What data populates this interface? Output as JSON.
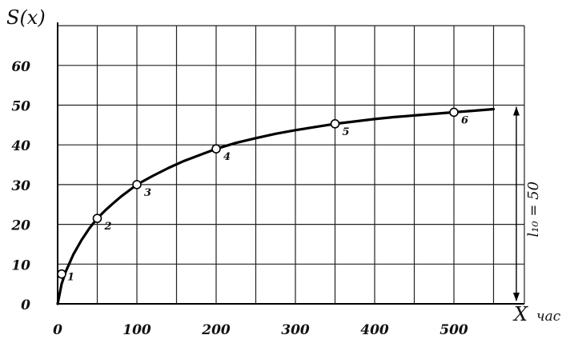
{
  "chart_data": {
    "type": "line",
    "ylabel": "S(x)",
    "xlabel": "X",
    "xunit": "час",
    "xlim": [
      0,
      550
    ],
    "ylim": [
      0,
      70
    ],
    "xticks": [
      0,
      100,
      200,
      300,
      400,
      500
    ],
    "yticks": [
      0,
      10,
      20,
      30,
      40,
      50,
      60
    ],
    "grid": true,
    "curve": [
      [
        0,
        0
      ],
      [
        5,
        5
      ],
      [
        10,
        8
      ],
      [
        20,
        12.5
      ],
      [
        30,
        16
      ],
      [
        40,
        19
      ],
      [
        50,
        21.5
      ],
      [
        60,
        23.5
      ],
      [
        70,
        25.3
      ],
      [
        80,
        27
      ],
      [
        90,
        28.5
      ],
      [
        100,
        30
      ],
      [
        120,
        32.2
      ],
      [
        140,
        34.2
      ],
      [
        160,
        36
      ],
      [
        180,
        37.5
      ],
      [
        200,
        39
      ],
      [
        225,
        40.5
      ],
      [
        250,
        41.7
      ],
      [
        275,
        42.8
      ],
      [
        300,
        43.7
      ],
      [
        325,
        44.5
      ],
      [
        350,
        45.3
      ],
      [
        375,
        45.9
      ],
      [
        400,
        46.5
      ],
      [
        425,
        47
      ],
      [
        450,
        47.4
      ],
      [
        475,
        47.8
      ],
      [
        500,
        48.2
      ],
      [
        525,
        48.6
      ],
      [
        550,
        49
      ]
    ],
    "points": [
      {
        "label": "1",
        "x": 0,
        "y": 7.5
      },
      {
        "label": "2",
        "x": 50,
        "y": 21.5
      },
      {
        "label": "3",
        "x": 100,
        "y": 30
      },
      {
        "label": "4",
        "x": 200,
        "y": 39
      },
      {
        "label": "5",
        "x": 350,
        "y": 45.3
      },
      {
        "label": "6",
        "x": 500,
        "y": 48.2
      }
    ],
    "asymptote": {
      "y": 50,
      "label": "l₁₀ = 50"
    }
  }
}
